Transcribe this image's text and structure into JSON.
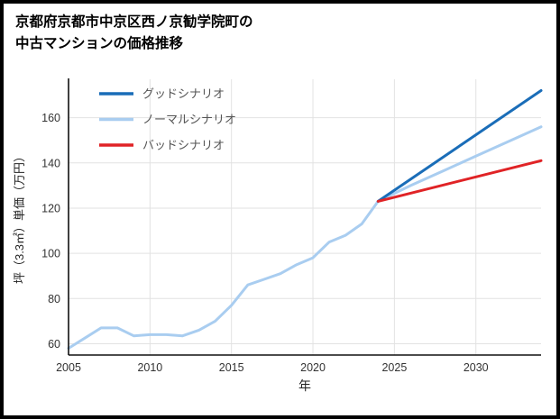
{
  "title": {
    "line1": "京都府京都市中京区西ノ京勧学院町の",
    "line2": "中古マンションの価格推移"
  },
  "chart_data": {
    "type": "line",
    "title": "京都府京都市中京区西ノ京勧学院町の中古マンションの価格推移",
    "xlabel": "年",
    "ylabel": "坪（3.3㎡）単価（万円）",
    "xlim": [
      2005,
      2034
    ],
    "ylim": [
      55,
      177
    ],
    "xticks": [
      2005,
      2010,
      2015,
      2020,
      2025,
      2030
    ],
    "yticks": [
      60,
      80,
      100,
      120,
      140,
      160
    ],
    "grid": true,
    "legend_position": "top-left",
    "background": "#ffffff",
    "colors": {
      "grid": "#e2e2e2",
      "axis": "#101010",
      "tick_label": "#333333",
      "legend_label": "#555555",
      "title": "#000000"
    },
    "draw_order": [
      1,
      0,
      2
    ],
    "series": [
      {
        "name": "グッドシナリオ",
        "color": "#1a6db8",
        "x": [
          2024,
          2034
        ],
        "values": [
          123,
          172
        ]
      },
      {
        "name": "ノーマルシナリオ",
        "color": "#a9cdf0",
        "x": [
          2005,
          2006,
          2007,
          2008,
          2009,
          2010,
          2011,
          2012,
          2013,
          2014,
          2015,
          2016,
          2017,
          2018,
          2019,
          2020,
          2021,
          2022,
          2023,
          2024,
          2026,
          2028,
          2030,
          2032,
          2034
        ],
        "values": [
          58,
          62.5,
          67,
          67,
          63.5,
          64,
          64,
          63.5,
          66,
          70,
          77,
          86,
          88.5,
          91,
          95,
          98,
          105,
          108,
          113,
          123,
          130,
          136.5,
          143,
          149.5,
          156
        ]
      },
      {
        "name": "バッドシナリオ",
        "color": "#e02326",
        "x": [
          2024,
          2034
        ],
        "values": [
          123,
          141
        ]
      }
    ]
  }
}
